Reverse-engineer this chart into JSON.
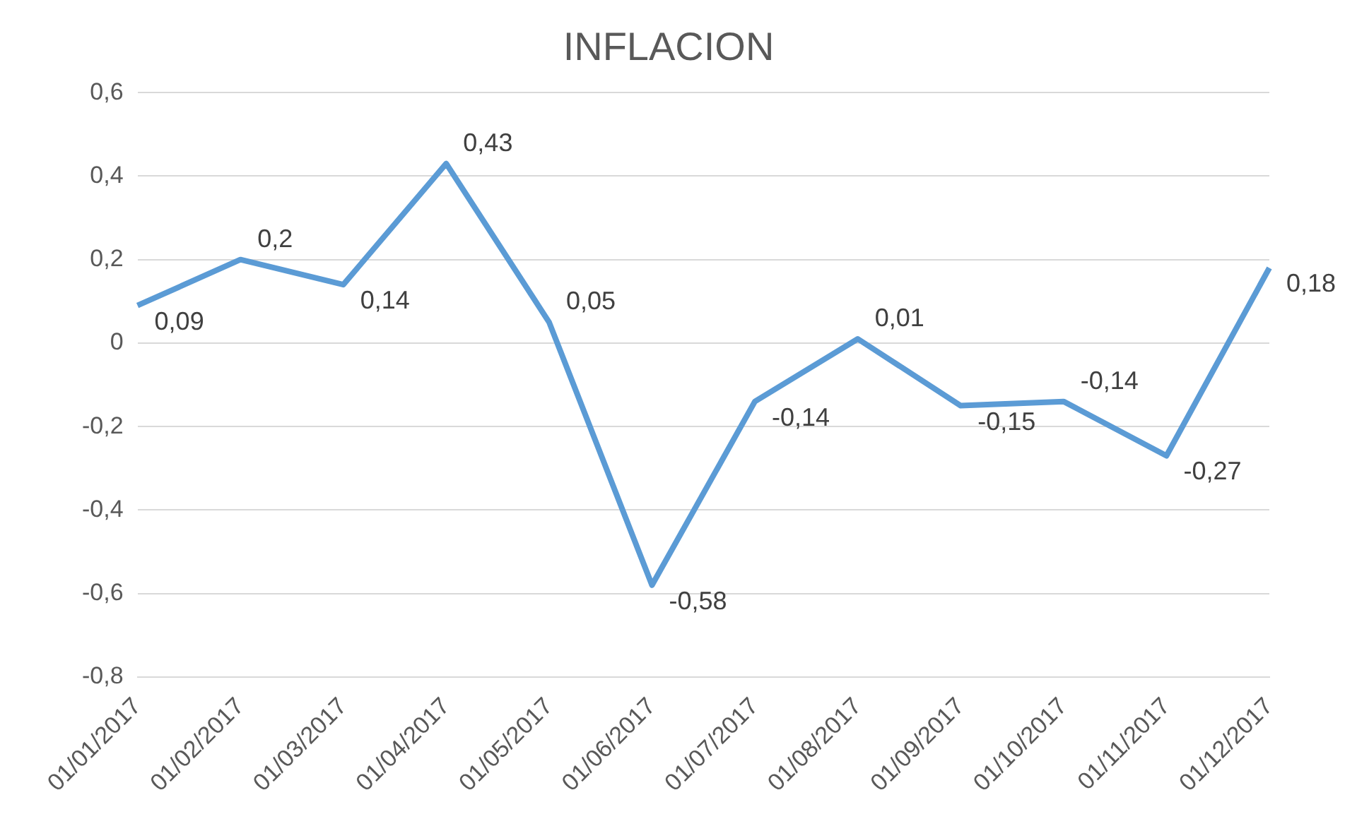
{
  "chart_data": {
    "type": "line",
    "title": "INFLACION",
    "categories": [
      "01/01/2017",
      "01/02/2017",
      "01/03/2017",
      "01/04/2017",
      "01/05/2017",
      "01/06/2017",
      "01/07/2017",
      "01/08/2017",
      "01/09/2017",
      "01/10/2017",
      "01/11/2017",
      "01/12/2017"
    ],
    "series": [
      {
        "color": "#5b9bd5",
        "values": [
          0.09,
          0.2,
          0.14,
          0.43,
          0.05,
          -0.58,
          -0.14,
          0.01,
          -0.15,
          -0.14,
          -0.27,
          0.18
        ],
        "value_labels": [
          "0,09",
          "0,2",
          "0,14",
          "0,43",
          "0,05",
          "-0,58",
          "-0,14",
          "0,01",
          "-0,15",
          "-0,14",
          "-0,27",
          "0,18"
        ]
      }
    ],
    "ylim": [
      -0.8,
      0.6
    ],
    "yticks": [
      {
        "value": -0.8,
        "label": "-0,8"
      },
      {
        "value": -0.6,
        "label": "-0,6"
      },
      {
        "value": -0.4,
        "label": "-0,4"
      },
      {
        "value": -0.2,
        "label": "-0,2"
      },
      {
        "value": 0,
        "label": "0"
      },
      {
        "value": 0.2,
        "label": "0,2"
      },
      {
        "value": 0.4,
        "label": "0,4"
      },
      {
        "value": 0.6,
        "label": "0,6"
      }
    ],
    "grid": "y",
    "legend": false
  }
}
